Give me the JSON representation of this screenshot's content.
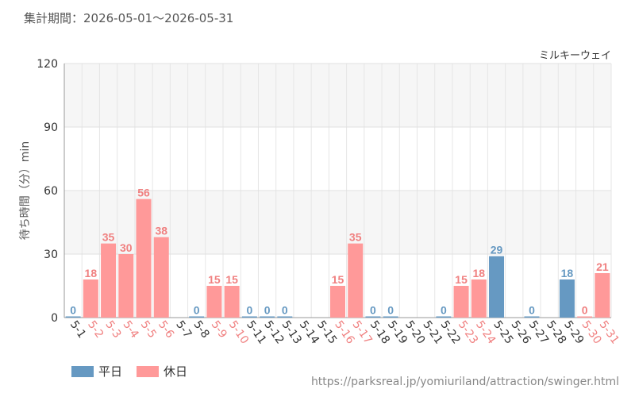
{
  "header": {
    "period": "集計期間：2026-05-01～2026-05-31"
  },
  "footer": {
    "source_url": "https://parksreal.jp/yomiuriland/attraction/swinger.html"
  },
  "legend": {
    "weekday_label": "平日",
    "holiday_label": "休日"
  },
  "colors": {
    "weekday": "#6699c2",
    "holiday": "#ff9999",
    "weekday_text": "#6699c2",
    "holiday_text": "#f08080",
    "axis_text": "#333333"
  },
  "chart_data": {
    "type": "bar",
    "subtitle": "ミルキーウェイ",
    "ylabel": "待ち時間（分）min",
    "xlabel": "",
    "ylim": [
      0,
      120
    ],
    "yticks": [
      0,
      30,
      60,
      90,
      120
    ],
    "grid": true,
    "legend_position": "bottom-left",
    "categories": [
      "5-1",
      "5-2",
      "5-3",
      "5-4",
      "5-5",
      "5-6",
      "5-7",
      "5-8",
      "5-9",
      "5-10",
      "5-11",
      "5-12",
      "5-13",
      "5-14",
      "5-15",
      "5-16",
      "5-17",
      "5-18",
      "5-19",
      "5-20",
      "5-21",
      "5-22",
      "5-23",
      "5-24",
      "5-25",
      "5-26",
      "5-27",
      "5-28",
      "5-29",
      "5-30",
      "5-31"
    ],
    "values": [
      0,
      18,
      35,
      30,
      56,
      38,
      null,
      0,
      15,
      15,
      0,
      0,
      0,
      null,
      null,
      15,
      35,
      0,
      0,
      null,
      null,
      0,
      15,
      18,
      29,
      null,
      0,
      null,
      18,
      0,
      21
    ],
    "day_types": [
      "weekday",
      "holiday",
      "holiday",
      "holiday",
      "holiday",
      "holiday",
      "weekday",
      "weekday",
      "holiday",
      "holiday",
      "weekday",
      "weekday",
      "weekday",
      "weekday",
      "weekday",
      "holiday",
      "holiday",
      "weekday",
      "weekday",
      "weekday",
      "weekday",
      "weekday",
      "holiday",
      "holiday",
      "weekday",
      "weekday",
      "weekday",
      "weekday",
      "weekday",
      "holiday",
      "holiday"
    ]
  }
}
